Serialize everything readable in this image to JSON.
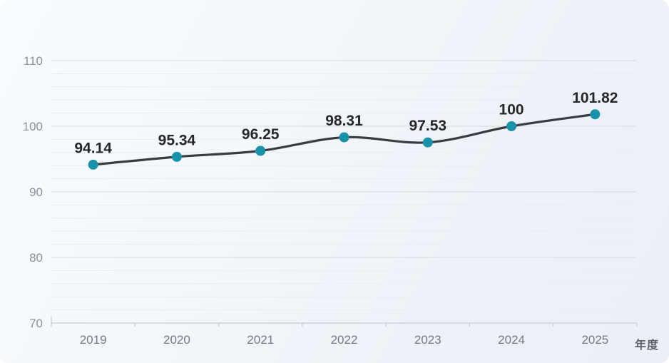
{
  "chart_data": {
    "type": "line",
    "categories": [
      "2019",
      "2020",
      "2021",
      "2022",
      "2023",
      "2024",
      "2025"
    ],
    "values": [
      94.14,
      95.34,
      96.25,
      98.31,
      97.53,
      100,
      101.82
    ],
    "value_labels": [
      "94.14",
      "95.34",
      "96.25",
      "98.31",
      "97.53",
      "100",
      "101.82"
    ],
    "title": "",
    "xlabel": "年度",
    "ylabel": "",
    "ylim": [
      70,
      110
    ],
    "y_major_step": 10,
    "y_minor_step": 2,
    "grid": true,
    "smooth": true,
    "legend_position": "none",
    "colors": {
      "line": "#3a3a40",
      "marker": "#1893a9",
      "data_label": "#26262b",
      "y_axis_label": "#8b9099",
      "x_axis_label": "#757a82",
      "axis_title": "#5b6068",
      "grid_major": "#d5dade",
      "grid_minor": "#e9edf2",
      "axis_line": "#c6cbd1"
    }
  }
}
